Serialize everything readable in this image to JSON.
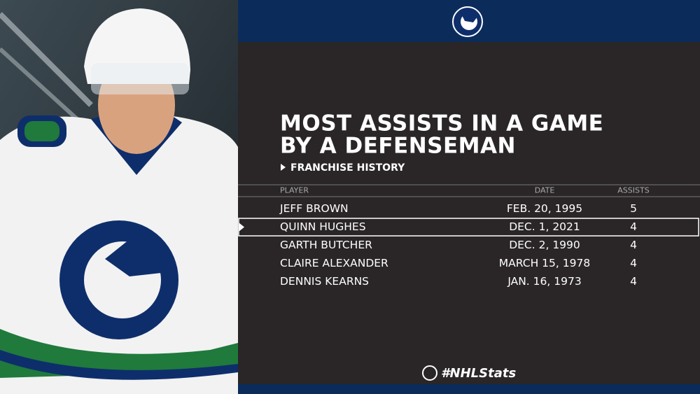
{
  "header": {
    "title_lines": [
      "MOST ASSISTS IN A GAME",
      "BY A DEFENSEMAN"
    ],
    "subtitle": "FRANCHISE HISTORY"
  },
  "table": {
    "columns": [
      "PLAYER",
      "DATE",
      "ASSISTS"
    ],
    "rows": [
      [
        "JEFF BROWN",
        "FEB. 20, 1995",
        5
      ],
      [
        "QUINN HUGHES",
        "DEC. 1, 2021",
        4
      ],
      [
        "GARTH BUTCHER",
        "DEC. 2, 1990",
        4
      ],
      [
        "CLAIRE ALEXANDER",
        "MARCH 15, 1978",
        4
      ],
      [
        "DENNIS KEARNS",
        "JAN. 16, 1973",
        4
      ]
    ]
  },
  "footer": {
    "hashtag": "#NHLStats"
  }
}
